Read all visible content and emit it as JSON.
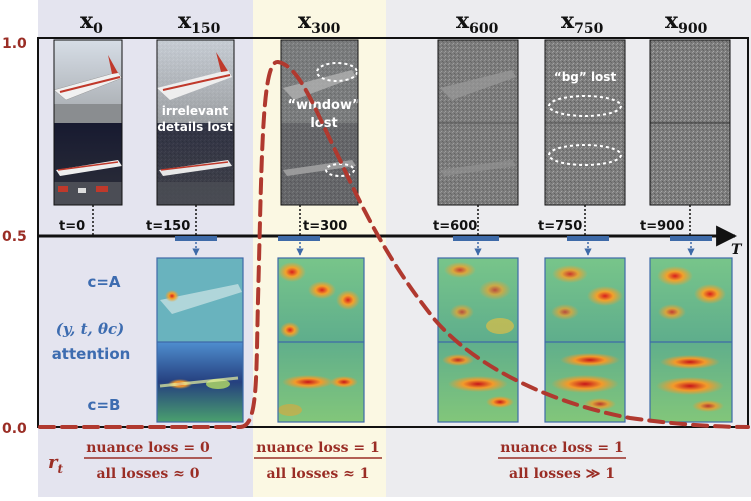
{
  "figure": {
    "y_axis_ticks": [
      "1.0",
      "0.5",
      "0.0"
    ],
    "axis_label_t": "T",
    "row_labels": {
      "cA": "c=A",
      "attention_tuple": "(y, t, θc)",
      "attention_word": "attention",
      "cB": "c=B"
    },
    "r_label": "rt",
    "columns": [
      {
        "id": "x0",
        "var": "x",
        "sub": "0",
        "t_label": "t=0",
        "annotation": "",
        "has_heatmap": false
      },
      {
        "id": "x150",
        "var": "x",
        "sub": "150",
        "t_label": "t=150",
        "annotation_lines": [
          "irrelevant",
          "details lost"
        ],
        "has_heatmap": true
      },
      {
        "id": "x300",
        "var": "x",
        "sub": "300",
        "t_label": "t=300",
        "annotation_lines": [
          "“window”",
          "lost"
        ],
        "has_heatmap": true
      },
      {
        "id": "x600",
        "var": "x",
        "sub": "600",
        "t_label": "t=600",
        "annotation_lines": [],
        "has_heatmap": true
      },
      {
        "id": "x750",
        "var": "x",
        "sub": "750",
        "t_label": "t=750",
        "annotation_lines": [
          "“bg” lost"
        ],
        "has_heatmap": true
      },
      {
        "id": "x900",
        "var": "x",
        "sub": "900",
        "t_label": "t=900",
        "annotation_lines": [],
        "has_heatmap": true
      }
    ],
    "ratios": [
      {
        "id": "r1",
        "numerator": "nuance loss = 0",
        "denominator": "all losses ≈ 0"
      },
      {
        "id": "r2",
        "numerator": "nuance loss = 1",
        "denominator": "all losses ≈ 1"
      },
      {
        "id": "r3",
        "numerator": "nuance loss = 1",
        "denominator": "all losses ≫ 1"
      }
    ],
    "colors": {
      "curve": "#b0392f",
      "axis_label": "#9a2d25",
      "blue_text": "#3d6cb0",
      "panel_left": "#e4e4ef",
      "panel_mid": "#fbf8e3",
      "panel_right": "#ececef",
      "marker": "#3e6aa8"
    }
  }
}
